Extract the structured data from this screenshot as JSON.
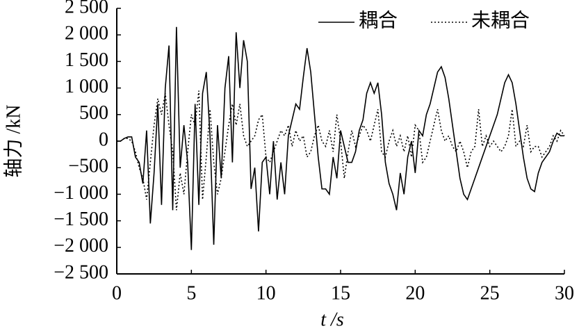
{
  "chart_data": {
    "type": "line",
    "xlabel": "t /s",
    "ylabel": "轴力 /kN",
    "x": [
      0,
      0.25,
      0.5,
      0.75,
      1,
      1.25,
      1.5,
      1.75,
      2,
      2.25,
      2.5,
      2.75,
      3,
      3.25,
      3.5,
      3.75,
      4,
      4.25,
      4.5,
      4.75,
      5,
      5.25,
      5.5,
      5.75,
      6,
      6.25,
      6.5,
      6.75,
      7,
      7.25,
      7.5,
      7.75,
      8,
      8.25,
      8.5,
      8.75,
      9,
      9.25,
      9.5,
      9.75,
      10,
      10.25,
      10.5,
      10.75,
      11,
      11.25,
      11.5,
      11.75,
      12,
      12.25,
      12.5,
      12.75,
      13,
      13.25,
      13.5,
      13.75,
      14,
      14.25,
      14.5,
      14.75,
      15,
      15.25,
      15.5,
      15.75,
      16,
      16.25,
      16.5,
      16.75,
      17,
      17.25,
      17.5,
      17.75,
      18,
      18.25,
      18.5,
      18.75,
      19,
      19.25,
      19.5,
      19.75,
      20,
      20.25,
      20.5,
      20.75,
      21,
      21.25,
      21.5,
      21.75,
      22,
      22.25,
      22.5,
      22.75,
      23,
      23.25,
      23.5,
      23.75,
      24,
      24.25,
      24.5,
      24.75,
      25,
      25.25,
      25.5,
      25.75,
      26,
      26.25,
      26.5,
      26.75,
      27,
      27.25,
      27.5,
      27.75,
      28,
      28.25,
      28.5,
      28.75,
      29,
      29.25,
      29.5,
      29.75,
      30
    ],
    "series": [
      {
        "name": "耦合",
        "color": "#000000",
        "linestyle": "solid",
        "values": [
          0,
          0,
          50,
          80,
          80,
          -300,
          -400,
          -800,
          200,
          -1550,
          -600,
          700,
          -1200,
          1000,
          1800,
          -1300,
          2150,
          -500,
          300,
          -400,
          -2050,
          700,
          -1200,
          900,
          1300,
          100,
          -1950,
          300,
          -700,
          1000,
          1600,
          -400,
          2050,
          1000,
          1900,
          1500,
          -900,
          -500,
          -1700,
          -400,
          -300,
          -1000,
          0,
          -1100,
          -400,
          -1000,
          100,
          400,
          700,
          600,
          1200,
          1750,
          1300,
          500,
          -300,
          -900,
          -900,
          -1000,
          -300,
          -700,
          200,
          -100,
          -400,
          -400,
          -200,
          200,
          400,
          900,
          1100,
          900,
          1100,
          500,
          -400,
          -800,
          -1000,
          -1300,
          -600,
          -1000,
          -300,
          0,
          -600,
          200,
          100,
          500,
          700,
          1000,
          1300,
          1400,
          1200,
          800,
          300,
          -200,
          -700,
          -1000,
          -1100,
          -900,
          -700,
          -500,
          -300,
          -100,
          100,
          300,
          500,
          800,
          1100,
          1250,
          1100,
          700,
          200,
          -300,
          -700,
          -900,
          -950,
          -600,
          -400,
          -300,
          -200,
          0,
          150,
          100,
          100
        ]
      },
      {
        "name": "未耦合",
        "color": "#000000",
        "linestyle": "dotted",
        "values": [
          0,
          0,
          50,
          50,
          0,
          -200,
          -500,
          -700,
          -1100,
          -400,
          300,
          800,
          500,
          900,
          300,
          -200,
          -1300,
          -600,
          -1000,
          -200,
          500,
          300,
          950,
          -1100,
          -300,
          600,
          -400,
          -1000,
          -700,
          -200,
          300,
          700,
          300,
          700,
          100,
          -100,
          0,
          100,
          400,
          500,
          -300,
          -400,
          -200,
          0,
          200,
          100,
          300,
          -100,
          200,
          0,
          100,
          -300,
          -200,
          100,
          300,
          0,
          -100,
          200,
          -200,
          500,
          0,
          -700,
          -200,
          200,
          -100,
          100,
          300,
          200,
          0,
          300,
          600,
          -200,
          -300,
          0,
          200,
          -100,
          100,
          -200,
          100,
          -300,
          300,
          200,
          -400,
          -300,
          0,
          300,
          600,
          200,
          0,
          100,
          -100,
          -200,
          0,
          -200,
          -500,
          -200,
          -100,
          600,
          -100,
          100,
          -100,
          0,
          -100,
          -200,
          -100,
          100,
          600,
          -100,
          0,
          -100,
          300,
          -200,
          -100,
          -100,
          -300,
          -200,
          -100,
          100,
          0,
          200,
          100
        ]
      }
    ],
    "xlim": [
      0,
      30
    ],
    "xticks": [
      0,
      5,
      10,
      15,
      20,
      25,
      30
    ],
    "ylim": [
      -2500,
      2500
    ],
    "yticks": [
      {
        "value": -2500,
        "label": "−2 500"
      },
      {
        "value": -2000,
        "label": "−2 000"
      },
      {
        "value": -1500,
        "label": "−1 500"
      },
      {
        "value": -1000,
        "label": "−1 000"
      },
      {
        "value": -500,
        "label": "−500"
      },
      0,
      500,
      {
        "value": 1000,
        "label": "1 000"
      },
      {
        "value": 1500,
        "label": "1 500"
      },
      {
        "value": 2000,
        "label": "2 000"
      },
      {
        "value": 2500,
        "label": "2 500"
      }
    ],
    "legend": "upper right",
    "grid": false
  }
}
